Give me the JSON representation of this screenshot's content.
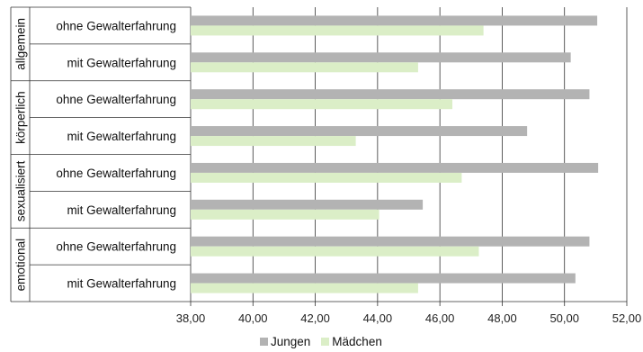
{
  "colors": {
    "jungen": "#b3b3b3",
    "maedchen": "#dbeec7",
    "grid": "#333333"
  },
  "legend": {
    "jungen": "Jungen",
    "maedchen": "Mädchen"
  },
  "chart_data": {
    "type": "bar",
    "orientation": "horizontal",
    "groups": [
      {
        "label": "allgemein",
        "categories": [
          "ohne Gewalterfahrung",
          "mit Gewalterfahrung"
        ]
      },
      {
        "label": "körperlich",
        "categories": [
          "ohne Gewalterfahrung",
          "mit Gewalterfahrung"
        ]
      },
      {
        "label": "sexualisiert",
        "categories": [
          "ohne Gewalterfahrung",
          "mit Gewalterfahrung"
        ]
      },
      {
        "label": "emotional",
        "categories": [
          "ohne Gewalterfahrung",
          "mit Gewalterfahrung"
        ]
      }
    ],
    "series": [
      {
        "name": "Jungen",
        "values": [
          51.05,
          50.2,
          50.8,
          48.8,
          51.08,
          45.45,
          50.8,
          50.35
        ]
      },
      {
        "name": "Mädchen",
        "values": [
          47.4,
          45.3,
          46.4,
          43.3,
          46.7,
          44.05,
          47.25,
          45.3
        ]
      }
    ],
    "xlim": [
      38,
      52
    ],
    "xticks": [
      "38,00",
      "40,00",
      "42,00",
      "44,00",
      "46,00",
      "48,00",
      "50,00",
      "52,00"
    ],
    "grid": true,
    "legend_position": "bottom"
  }
}
